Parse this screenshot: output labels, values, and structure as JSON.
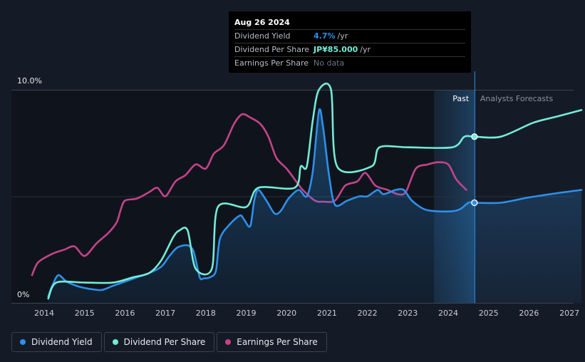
{
  "tooltip": {
    "date": "Aug 26 2024",
    "rows": [
      {
        "label": "Dividend Yield",
        "value": "4.7%",
        "unit": "/yr",
        "color": "#2e90ea"
      },
      {
        "label": "Dividend Per Share",
        "value": "JP¥85.000",
        "unit": "/yr",
        "color": "#74ecd8"
      },
      {
        "label": "Earnings Per Share",
        "value": "No data",
        "unit": ""
      }
    ]
  },
  "legend": [
    {
      "label": "Dividend Yield",
      "color": "#2e90ea"
    },
    {
      "label": "Dividend Per Share",
      "color": "#74ecd8"
    },
    {
      "label": "Earnings Per Share",
      "color": "#c3438a"
    }
  ],
  "chart_data": {
    "type": "line",
    "x_unit": "year",
    "xlim": [
      2013.7,
      2027.3
    ],
    "ylim": [
      0,
      10
    ],
    "y_tick_labels": [
      {
        "value": 10,
        "label": "10.0%"
      },
      {
        "value": 0,
        "label": "0%"
      }
    ],
    "x_ticks": [
      2014,
      2015,
      2016,
      2017,
      2018,
      2019,
      2020,
      2021,
      2022,
      2023,
      2024,
      2025,
      2026,
      2027
    ],
    "past_label": "Past",
    "forecast_label": "Analysts Forecasts",
    "forecast_start": 2023.65,
    "cursor_x": 2024.65,
    "series": [
      {
        "name": "Dividend Yield",
        "color": "#2e90ea",
        "fill": true,
        "points": [
          [
            2014.1,
            0.3
          ],
          [
            2014.2,
            0.8
          ],
          [
            2014.35,
            1.3
          ],
          [
            2014.55,
            1.0
          ],
          [
            2014.8,
            0.8
          ],
          [
            2015.0,
            0.7
          ],
          [
            2015.4,
            0.6
          ],
          [
            2015.7,
            0.8
          ],
          [
            2016.0,
            1.0
          ],
          [
            2016.3,
            1.2
          ],
          [
            2016.6,
            1.4
          ],
          [
            2016.9,
            1.7
          ],
          [
            2017.1,
            2.2
          ],
          [
            2017.3,
            2.6
          ],
          [
            2017.55,
            2.7
          ],
          [
            2017.7,
            2.4
          ],
          [
            2017.85,
            1.2
          ],
          [
            2017.95,
            1.15
          ],
          [
            2018.1,
            1.2
          ],
          [
            2018.25,
            1.5
          ],
          [
            2018.35,
            3.0
          ],
          [
            2018.6,
            3.7
          ],
          [
            2018.85,
            4.1
          ],
          [
            2018.95,
            3.9
          ],
          [
            2019.1,
            3.6
          ],
          [
            2019.2,
            4.8
          ],
          [
            2019.3,
            5.3
          ],
          [
            2019.5,
            4.8
          ],
          [
            2019.7,
            4.2
          ],
          [
            2019.85,
            4.3
          ],
          [
            2020.05,
            4.9
          ],
          [
            2020.3,
            5.3
          ],
          [
            2020.5,
            5.0
          ],
          [
            2020.65,
            6.2
          ],
          [
            2020.8,
            9.0
          ],
          [
            2020.9,
            8.3
          ],
          [
            2021.05,
            6.0
          ],
          [
            2021.2,
            4.6
          ],
          [
            2021.5,
            4.8
          ],
          [
            2021.8,
            5.0
          ],
          [
            2022.0,
            5.0
          ],
          [
            2022.25,
            5.3
          ],
          [
            2022.4,
            5.1
          ],
          [
            2022.7,
            5.3
          ],
          [
            2022.9,
            5.3
          ],
          [
            2023.1,
            4.8
          ],
          [
            2023.4,
            4.4
          ],
          [
            2023.7,
            4.3
          ],
          [
            2024.1,
            4.3
          ],
          [
            2024.3,
            4.4
          ],
          [
            2024.5,
            4.7
          ],
          [
            2024.65,
            4.7
          ],
          [
            2025.3,
            4.7
          ],
          [
            2026.0,
            4.95
          ],
          [
            2026.7,
            5.15
          ],
          [
            2027.3,
            5.3
          ]
        ]
      },
      {
        "name": "Dividend Per Share",
        "color": "#74ecd8",
        "fill": false,
        "points": [
          [
            2014.1,
            0.2
          ],
          [
            2014.3,
            0.95
          ],
          [
            2015.0,
            0.95
          ],
          [
            2015.7,
            0.95
          ],
          [
            2016.2,
            1.2
          ],
          [
            2016.6,
            1.4
          ],
          [
            2016.9,
            2.0
          ],
          [
            2017.2,
            3.1
          ],
          [
            2017.35,
            3.4
          ],
          [
            2017.55,
            3.4
          ],
          [
            2017.75,
            1.6
          ],
          [
            2018.15,
            1.6
          ],
          [
            2018.3,
            4.5
          ],
          [
            2019.0,
            4.5
          ],
          [
            2019.3,
            5.4
          ],
          [
            2020.2,
            5.4
          ],
          [
            2020.35,
            6.4
          ],
          [
            2020.5,
            6.4
          ],
          [
            2020.65,
            8.6
          ],
          [
            2020.8,
            10.0
          ],
          [
            2021.1,
            10.0
          ],
          [
            2021.25,
            6.4
          ],
          [
            2022.1,
            6.4
          ],
          [
            2022.3,
            7.3
          ],
          [
            2023.0,
            7.3
          ],
          [
            2024.1,
            7.3
          ],
          [
            2024.4,
            7.8
          ],
          [
            2024.65,
            7.8
          ],
          [
            2025.3,
            7.8
          ],
          [
            2026.1,
            8.45
          ],
          [
            2026.7,
            8.75
          ],
          [
            2027.3,
            9.05
          ]
        ]
      },
      {
        "name": "Earnings Per Share",
        "color": "#c3438a",
        "fill": false,
        "points": [
          [
            2013.7,
            1.3
          ],
          [
            2013.85,
            1.9
          ],
          [
            2014.2,
            2.3
          ],
          [
            2014.5,
            2.5
          ],
          [
            2014.75,
            2.65
          ],
          [
            2015.0,
            2.2
          ],
          [
            2015.3,
            2.8
          ],
          [
            2015.6,
            3.3
          ],
          [
            2015.8,
            3.8
          ],
          [
            2015.9,
            4.4
          ],
          [
            2016.0,
            4.8
          ],
          [
            2016.3,
            4.9
          ],
          [
            2016.6,
            5.2
          ],
          [
            2016.8,
            5.4
          ],
          [
            2017.0,
            5.0
          ],
          [
            2017.25,
            5.7
          ],
          [
            2017.5,
            6.0
          ],
          [
            2017.75,
            6.5
          ],
          [
            2018.0,
            6.3
          ],
          [
            2018.2,
            7.0
          ],
          [
            2018.45,
            7.4
          ],
          [
            2018.7,
            8.4
          ],
          [
            2018.9,
            8.85
          ],
          [
            2019.1,
            8.7
          ],
          [
            2019.35,
            8.4
          ],
          [
            2019.55,
            7.8
          ],
          [
            2019.75,
            6.8
          ],
          [
            2020.0,
            6.3
          ],
          [
            2020.2,
            5.8
          ],
          [
            2020.4,
            5.3
          ],
          [
            2020.7,
            4.8
          ],
          [
            2020.9,
            4.75
          ],
          [
            2021.2,
            4.8
          ],
          [
            2021.45,
            5.5
          ],
          [
            2021.75,
            5.7
          ],
          [
            2021.95,
            6.1
          ],
          [
            2022.2,
            5.5
          ],
          [
            2022.5,
            5.3
          ],
          [
            2022.75,
            5.1
          ],
          [
            2022.95,
            5.2
          ],
          [
            2023.2,
            6.3
          ],
          [
            2023.5,
            6.5
          ],
          [
            2023.75,
            6.6
          ],
          [
            2024.0,
            6.5
          ],
          [
            2024.2,
            5.8
          ],
          [
            2024.45,
            5.3
          ]
        ]
      }
    ],
    "markers": [
      {
        "series": "Dividend Per Share",
        "x": 2024.65,
        "y": 7.8
      },
      {
        "series": "Dividend Yield",
        "x": 2024.65,
        "y": 4.7
      }
    ]
  }
}
